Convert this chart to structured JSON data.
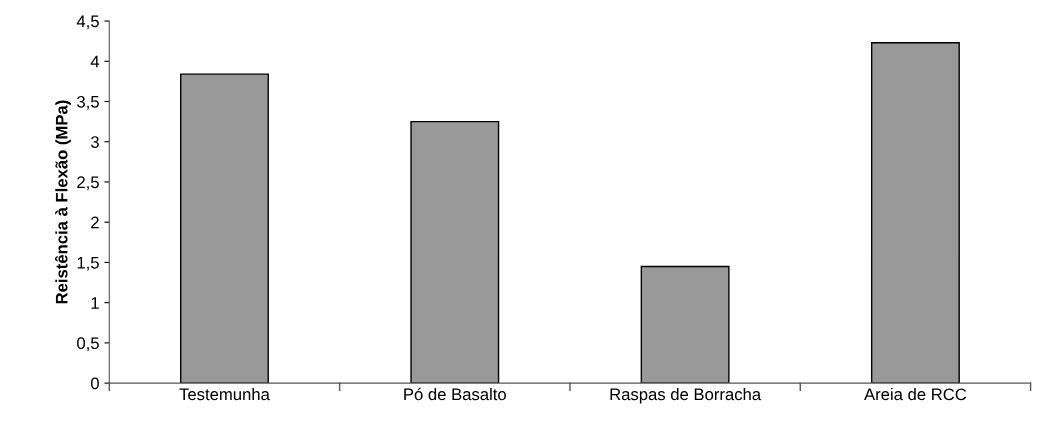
{
  "chart_data": {
    "type": "bar",
    "ylabel": "Reistência à Flexão (MPa)",
    "categories": [
      "Testemunha",
      "Pó de Basalto",
      "Raspas de Borracha",
      "Areia de RCC"
    ],
    "values": [
      3.84,
      3.25,
      1.45,
      4.23
    ],
    "color": "#999999",
    "ylim": [
      0,
      4.5
    ],
    "yticks": [
      0,
      {
        "value": 0.5,
        "label": "0,5"
      },
      1,
      {
        "value": 1.5,
        "label": "1,5"
      },
      2,
      {
        "value": 2.5,
        "label": "2,5"
      },
      3,
      {
        "value": 3.5,
        "label": "3,5"
      },
      4,
      {
        "value": 4.5,
        "label": "4,5"
      }
    ],
    "grid": false,
    "legend": false
  }
}
